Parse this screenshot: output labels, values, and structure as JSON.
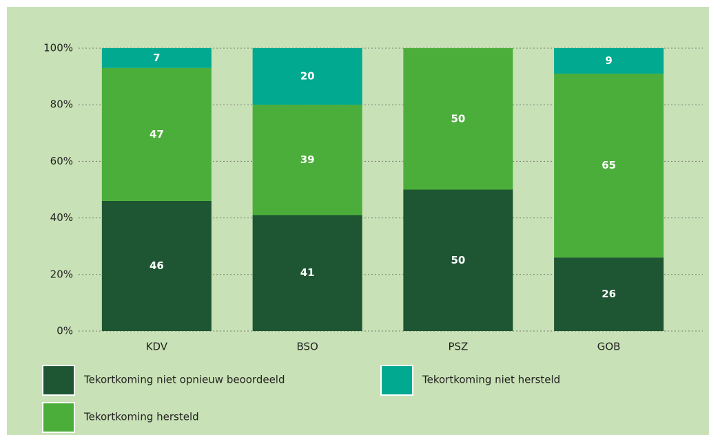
{
  "chart_data": {
    "type": "stacked_bar",
    "categories": [
      "KDV",
      "BSO",
      "PSZ",
      "GOB"
    ],
    "series": [
      {
        "name": "Tekortkoming niet opnieuw beoordeeld",
        "color": "#1e5633",
        "values": [
          46,
          41,
          50,
          26
        ]
      },
      {
        "name": "Tekortkoming hersteld",
        "color": "#4cae3a",
        "values": [
          47,
          39,
          50,
          65
        ]
      },
      {
        "name": "Tekortkoming niet hersteld",
        "color": "#00a98f",
        "values": [
          7,
          20,
          null,
          9
        ]
      }
    ],
    "ylim": [
      0,
      100
    ],
    "yticks": [
      {
        "value": 0,
        "label": "0%"
      },
      {
        "value": 20,
        "label": "20%"
      },
      {
        "value": 40,
        "label": "40%"
      },
      {
        "value": 60,
        "label": "60%"
      },
      {
        "value": 80,
        "label": "80%"
      },
      {
        "value": 100,
        "label": "100%"
      }
    ],
    "grid": true
  }
}
